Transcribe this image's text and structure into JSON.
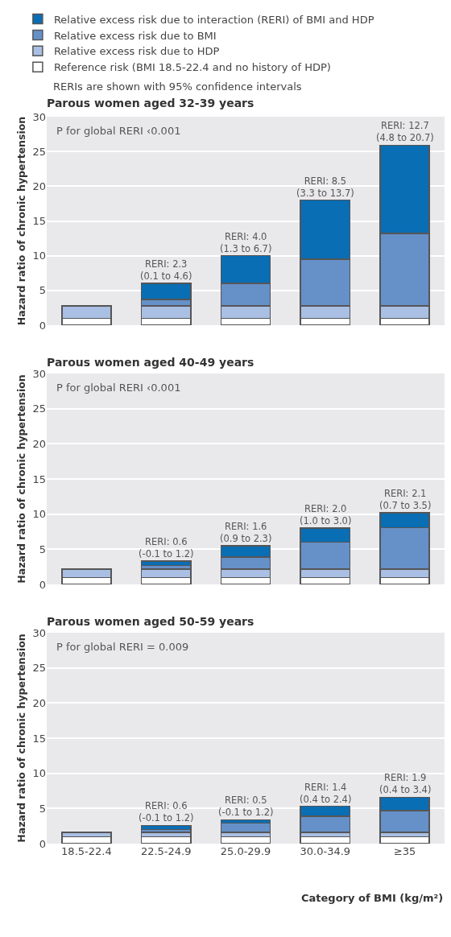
{
  "chart_data": [
    {
      "type": "bar",
      "title": "Parous women aged 32-39 years",
      "ylabel": "Hazard ratio of chronic hypertension",
      "categories": [
        "18.5-22.4",
        "22.5-24.9",
        "25.0-29.9",
        "30.0-34.9",
        "≥35"
      ],
      "stacked": true,
      "ylim": [
        0,
        30
      ],
      "yticks": [
        0,
        5,
        10,
        15,
        20,
        25,
        30
      ],
      "grid": "y",
      "legend": "top",
      "tick_labels": "y",
      "series": [
        {
          "name": "Reference risk (BMI 18.5-22.4 and no history of HDP)",
          "color": "#ffffff",
          "values": [
            1,
            1,
            1,
            1,
            1
          ]
        },
        {
          "name": "Relative excess risk due to HDP",
          "color": "#a9bfe3",
          "values": [
            1.8,
            1.8,
            1.8,
            1.8,
            1.8
          ]
        },
        {
          "name": "Relative excess risk due to BMI",
          "color": "#6690c8",
          "values": [
            null,
            0.9,
            3.2,
            6.7,
            10.4
          ]
        },
        {
          "name": "Relative excess risk due to interaction (RERI) of BMI and HDP",
          "color": "#0a6eb4",
          "values": [
            null,
            2.3,
            4.0,
            8.5,
            12.7
          ]
        }
      ],
      "annotations": [
        "RERIs are shown with 95% confidence intervals",
        "P for global RERI ‹0.001",
        {
          "text": "RERI: 2.3\n(0.1 to 4.6)",
          "x": "22.5-24.9",
          "y": 6.0
        },
        {
          "text": "RERI: 4.0\n(1.3 to 6.7)",
          "x": "25.0-29.9",
          "y": 10.0
        },
        {
          "text": "RERI: 8.5\n(3.3 to 13.7)",
          "x": "30.0-34.9",
          "y": 18.0
        },
        {
          "text": "RERI: 12.7\n(4.8 to 20.7)",
          "x": "≥35",
          "y": 25.9
        }
      ]
    },
    {
      "type": "bar",
      "title": "Parous women aged 40-49 years",
      "ylabel": "Hazard ratio of chronic hypertension",
      "categories": [
        "18.5-22.4",
        "22.5-24.9",
        "25.0-29.9",
        "30.0-34.9",
        "≥35"
      ],
      "stacked": true,
      "ylim": [
        0,
        30
      ],
      "yticks": [
        0,
        5,
        10,
        15,
        20,
        25,
        30
      ],
      "grid": "y",
      "tick_labels": "y",
      "series": [
        {
          "color": "#ffffff",
          "values": [
            1,
            1,
            1,
            1,
            1
          ]
        },
        {
          "color": "#a9bfe3",
          "values": [
            1.2,
            1.2,
            1.2,
            1.2,
            1.2
          ]
        },
        {
          "color": "#6690c8",
          "values": [
            null,
            0.5,
            1.7,
            3.8,
            5.9
          ]
        },
        {
          "color": "#0a6eb4",
          "values": [
            null,
            0.6,
            1.6,
            2.0,
            2.1
          ]
        }
      ],
      "annotations": [
        "P for global RERI ‹0.001",
        {
          "text": "RERI: 0.6\n(-0.1 to 1.2)",
          "x": "22.5-24.9",
          "y": 3.3
        },
        {
          "text": "RERI: 1.6\n(0.9 to 2.3)",
          "x": "25.0-29.9",
          "y": 5.5
        },
        {
          "text": "RERI: 2.0\n(1.0 to 3.0)",
          "x": "30.0-34.9",
          "y": 8.0
        },
        {
          "text": "RERI: 2.1\n(0.7 to 3.5)",
          "x": "≥35",
          "y": 10.2
        }
      ]
    },
    {
      "type": "bar",
      "title": "Parous women aged 50-59 years",
      "ylabel": "Hazard ratio of chronic hypertension",
      "xlabel": "Category of BMI (kg/m²)",
      "categories": [
        "18.5-22.4",
        "22.5-24.9",
        "25.0-29.9",
        "30.0-34.9",
        "≥35"
      ],
      "stacked": true,
      "ylim": [
        0,
        30
      ],
      "yticks": [
        0,
        5,
        10,
        15,
        20,
        25,
        30
      ],
      "grid": "y",
      "series": [
        {
          "color": "#ffffff",
          "values": [
            1,
            1,
            1,
            1,
            1
          ]
        },
        {
          "color": "#a9bfe3",
          "values": [
            0.6,
            0.6,
            0.6,
            0.6,
            0.6
          ]
        },
        {
          "color": "#6690c8",
          "values": [
            null,
            0.4,
            1.3,
            2.3,
            3.1
          ]
        },
        {
          "color": "#0a6eb4",
          "values": [
            null,
            0.6,
            0.5,
            1.4,
            1.9
          ]
        }
      ],
      "annotations": [
        "P for global RERI = 0.009",
        {
          "text": "RERI: 0.6\n(-0.1 to 1.2)",
          "x": "22.5-24.9",
          "y": 2.6
        },
        {
          "text": "RERI: 0.5\n(-0.1 to 1.2)",
          "x": "25.0-29.9",
          "y": 3.4
        },
        {
          "text": "RERI: 1.4\n(0.4 to 2.4)",
          "x": "30.0-34.9",
          "y": 5.3
        },
        {
          "text": "RERI: 1.9\n(0.4 to 3.4)",
          "x": "≥35",
          "y": 6.6
        }
      ]
    }
  ]
}
